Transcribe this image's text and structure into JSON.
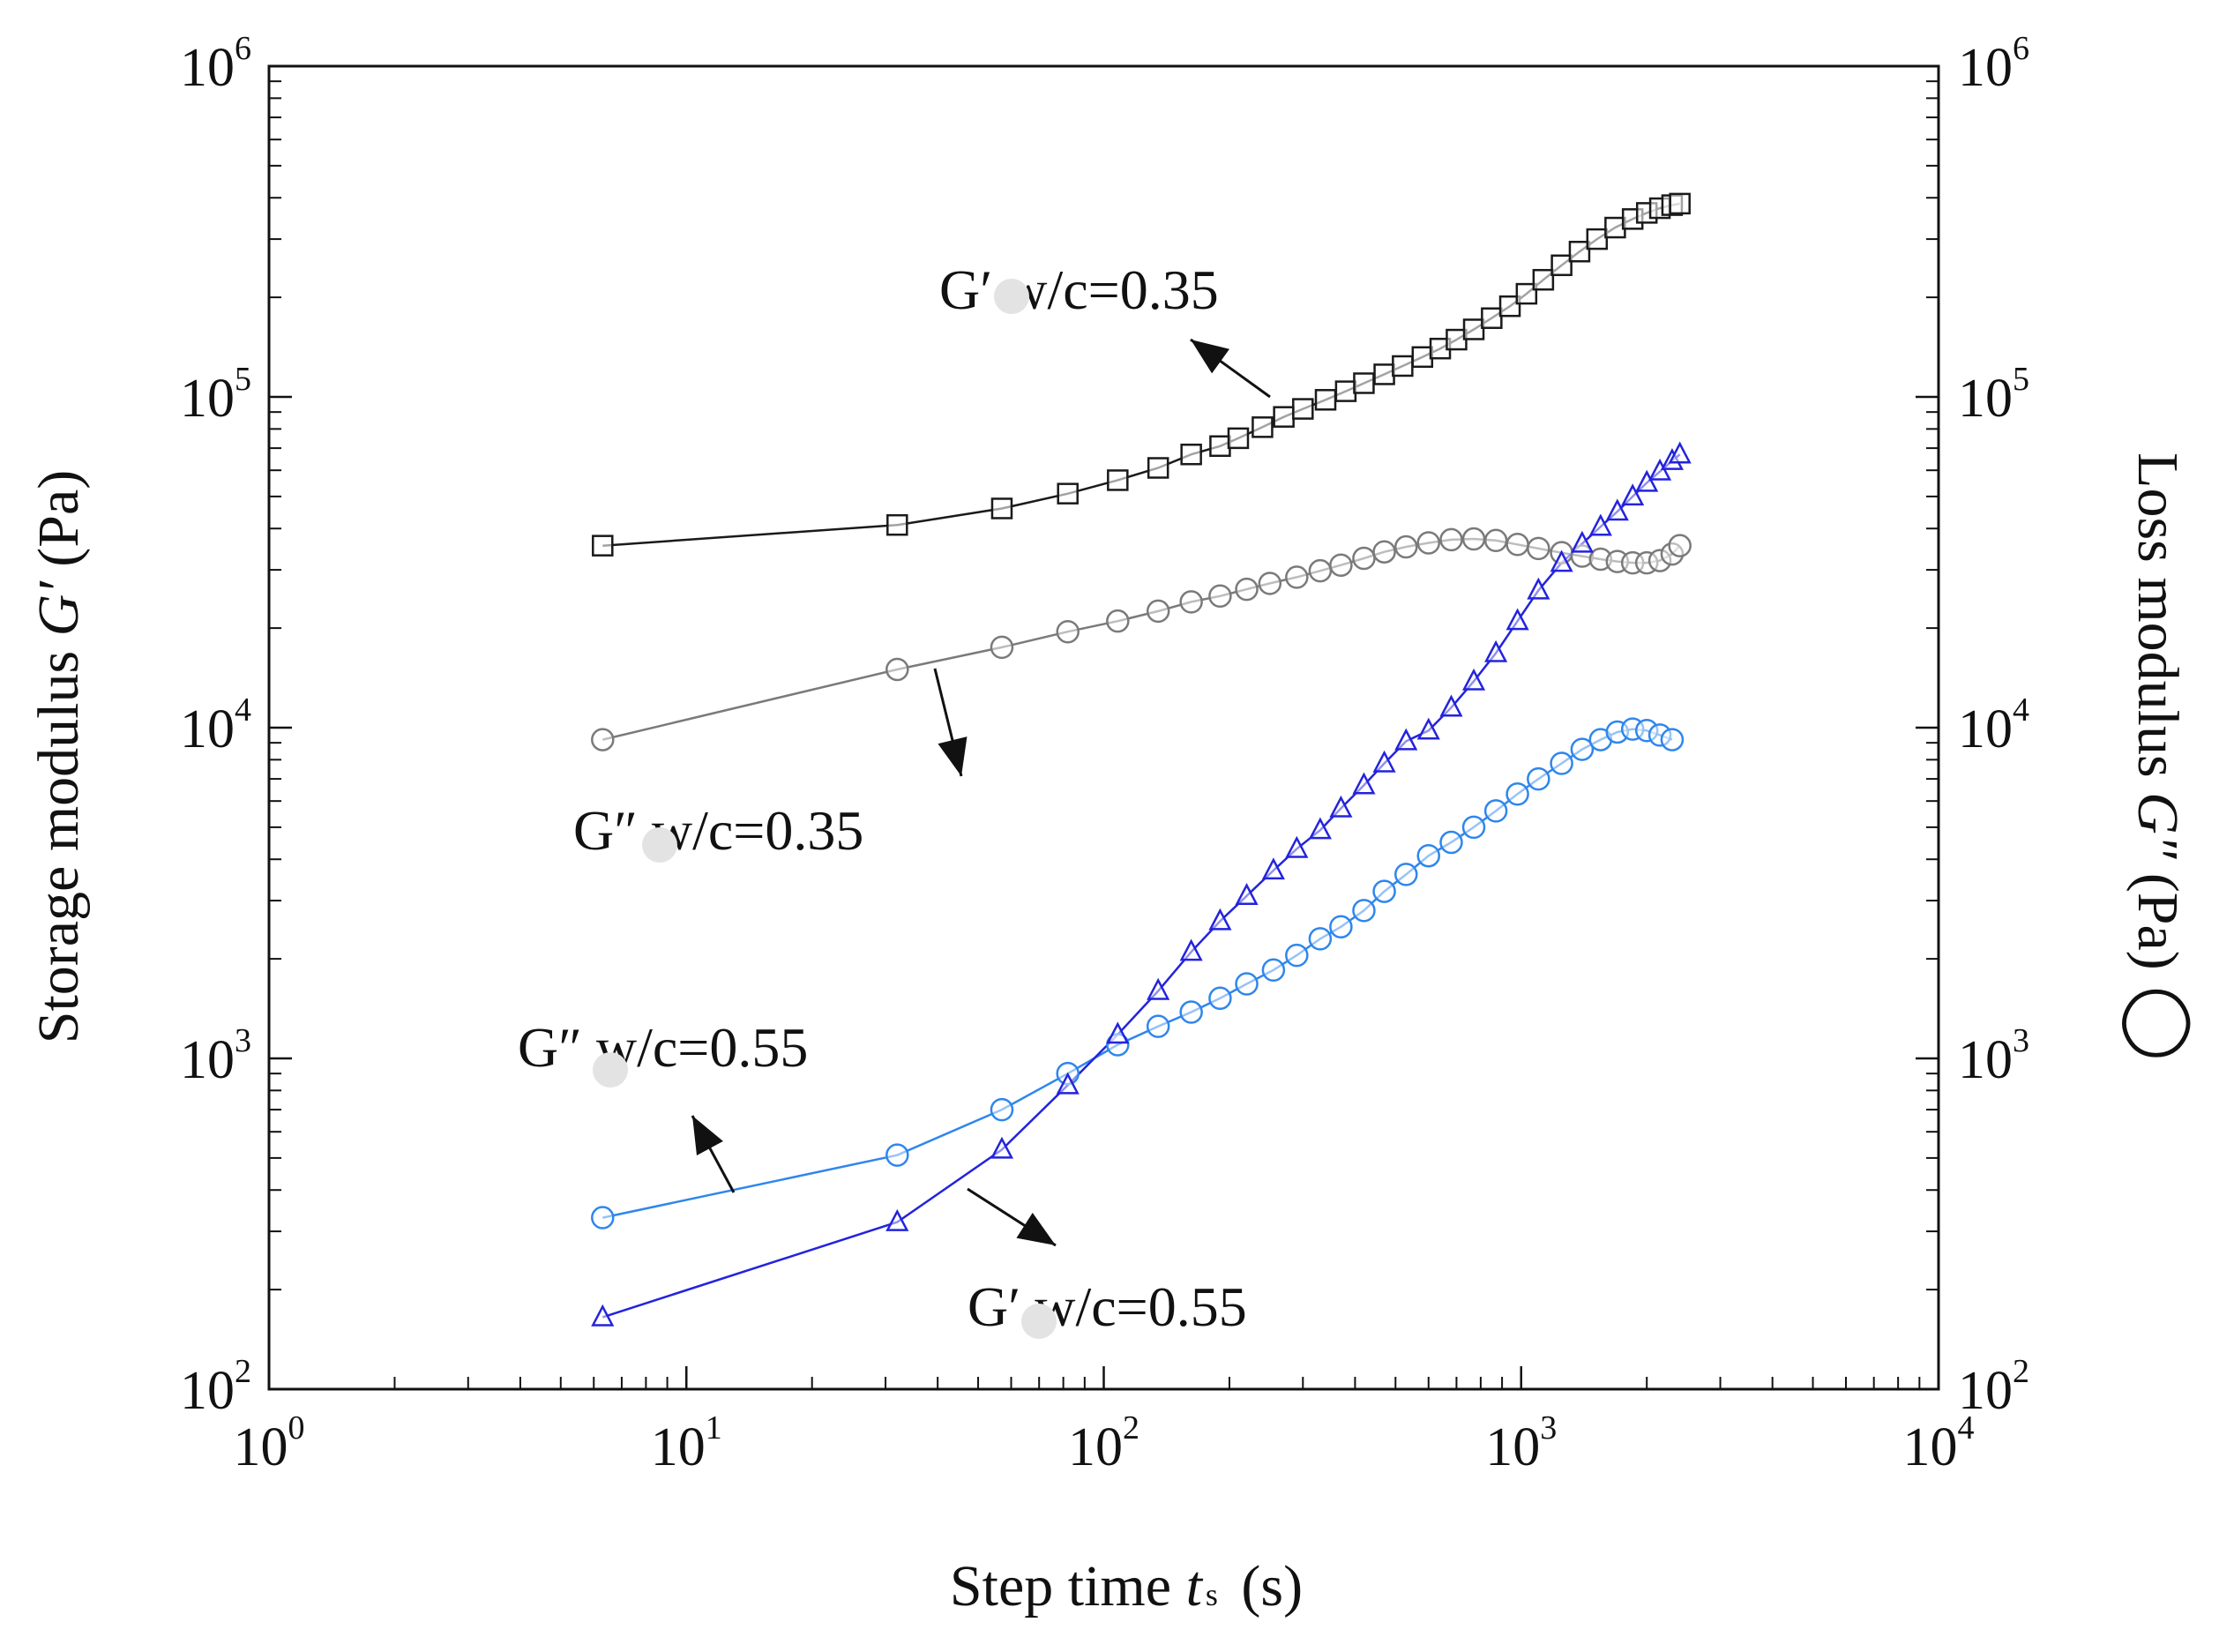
{
  "chart_data": {
    "type": "scatter",
    "xscale": "log",
    "yscale": "log",
    "xlim": [
      1,
      10000
    ],
    "ylim": [
      100,
      1000000
    ],
    "y2lim": [
      100,
      1000000
    ],
    "grid": false,
    "xlabel": {
      "text": "Step time ",
      "symbol": "t",
      "subscript": "s",
      "unit": " (s)"
    },
    "ylabel": {
      "text": "Storage modulus ",
      "symbol": "G′",
      "unit": " (Pa)"
    },
    "y2label": {
      "text": "Loss modulus ",
      "symbol": "G″",
      "unit": " (Pa)",
      "marker": "◯"
    },
    "x_ticks": [
      {
        "base": "10",
        "exp": "0",
        "value": 1
      },
      {
        "base": "10",
        "exp": "1",
        "value": 10
      },
      {
        "base": "10",
        "exp": "2",
        "value": 100
      },
      {
        "base": "10",
        "exp": "3",
        "value": 1000
      },
      {
        "base": "10",
        "exp": "4",
        "value": 10000
      }
    ],
    "y_ticks": [
      {
        "base": "10",
        "exp": "2",
        "value": 100
      },
      {
        "base": "10",
        "exp": "3",
        "value": 1000
      },
      {
        "base": "10",
        "exp": "4",
        "value": 10000
      },
      {
        "base": "10",
        "exp": "5",
        "value": 100000
      },
      {
        "base": "10",
        "exp": "6",
        "value": 1000000
      }
    ],
    "y2_ticks": [
      {
        "base": "10",
        "exp": "2",
        "value": 100
      },
      {
        "base": "10",
        "exp": "3",
        "value": 1000
      },
      {
        "base": "10",
        "exp": "4",
        "value": 10000
      },
      {
        "base": "10",
        "exp": "5",
        "value": 100000
      },
      {
        "base": "10",
        "exp": "6",
        "value": 1000000
      }
    ],
    "series": [
      {
        "name": "G′ w/c=0.35",
        "marker": "square",
        "color": "#1a1a1a",
        "x": [
          6.3,
          32,
          57,
          82,
          108,
          135,
          162,
          190,
          210,
          240,
          270,
          300,
          340,
          380,
          420,
          470,
          520,
          580,
          640,
          700,
          770,
          850,
          940,
          1030,
          1130,
          1250,
          1380,
          1520,
          1680,
          1850,
          2000,
          2150,
          2300,
          2400
        ],
        "y": [
          35500,
          41000,
          46000,
          51000,
          56000,
          61000,
          67000,
          71000,
          75000,
          81000,
          87000,
          92000,
          98000,
          104000,
          110000,
          117000,
          124000,
          132000,
          140000,
          149000,
          160000,
          173000,
          188000,
          205000,
          226000,
          250000,
          275000,
          300000,
          325000,
          345000,
          360000,
          372000,
          380000,
          384000
        ]
      },
      {
        "name": "G″ w/c=0.35",
        "marker": "circle",
        "color": "#7a7a7a",
        "x": [
          6.3,
          32,
          57,
          82,
          108,
          135,
          162,
          190,
          220,
          250,
          290,
          330,
          370,
          420,
          470,
          530,
          600,
          680,
          770,
          870,
          980,
          1100,
          1250,
          1400,
          1550,
          1700,
          1850,
          2000,
          2150,
          2300,
          2400
        ],
        "y": [
          9200,
          15000,
          17500,
          19500,
          21000,
          22500,
          24000,
          25000,
          26200,
          27300,
          28500,
          29800,
          31000,
          32500,
          34000,
          35200,
          36200,
          37000,
          37200,
          36800,
          35800,
          34800,
          33800,
          33000,
          32300,
          31800,
          31500,
          31500,
          32000,
          33500,
          35500
        ]
      },
      {
        "name": "G″ w/c=0.55",
        "marker": "circle",
        "color": "#2f86ec",
        "x": [
          6.3,
          32,
          57,
          82,
          108,
          135,
          162,
          190,
          220,
          255,
          290,
          330,
          370,
          420,
          470,
          530,
          600,
          680,
          770,
          870,
          980,
          1100,
          1250,
          1400,
          1550,
          1700,
          1850,
          2000,
          2150,
          2300
        ],
        "y": [
          330,
          510,
          700,
          900,
          1100,
          1250,
          1380,
          1520,
          1680,
          1850,
          2050,
          2300,
          2500,
          2800,
          3200,
          3600,
          4100,
          4500,
          5000,
          5600,
          6300,
          7000,
          7800,
          8600,
          9200,
          9700,
          9900,
          9800,
          9500,
          9200
        ]
      },
      {
        "name": "G′ w/c=0.55",
        "marker": "triangle",
        "color": "#2323dd",
        "x": [
          6.3,
          32,
          57,
          82,
          108,
          135,
          162,
          190,
          220,
          255,
          290,
          330,
          370,
          420,
          470,
          530,
          600,
          680,
          770,
          870,
          980,
          1100,
          1250,
          1400,
          1550,
          1700,
          1850,
          2000,
          2150,
          2300,
          2400
        ],
        "y": [
          165,
          320,
          530,
          830,
          1180,
          1600,
          2100,
          2600,
          3100,
          3700,
          4300,
          4900,
          5700,
          6700,
          7800,
          9100,
          9800,
          11500,
          13800,
          16800,
          21000,
          26000,
          31500,
          36000,
          40500,
          45000,
          50000,
          55000,
          59500,
          64000,
          67000
        ]
      }
    ],
    "annotations": [
      {
        "series": "G′ w/c=0.35",
        "symbol": "G′",
        "text": "w/c=0.35"
      },
      {
        "series": "G″ w/c=0.35",
        "symbol": "G″",
        "text": "w/c=0.35"
      },
      {
        "series": "G″ w/c=0.55",
        "symbol": "G″",
        "text": "w/c=0.55"
      },
      {
        "series": "G′ w/c=0.55",
        "symbol": "G′",
        "text": "w/c=0.55"
      }
    ]
  }
}
